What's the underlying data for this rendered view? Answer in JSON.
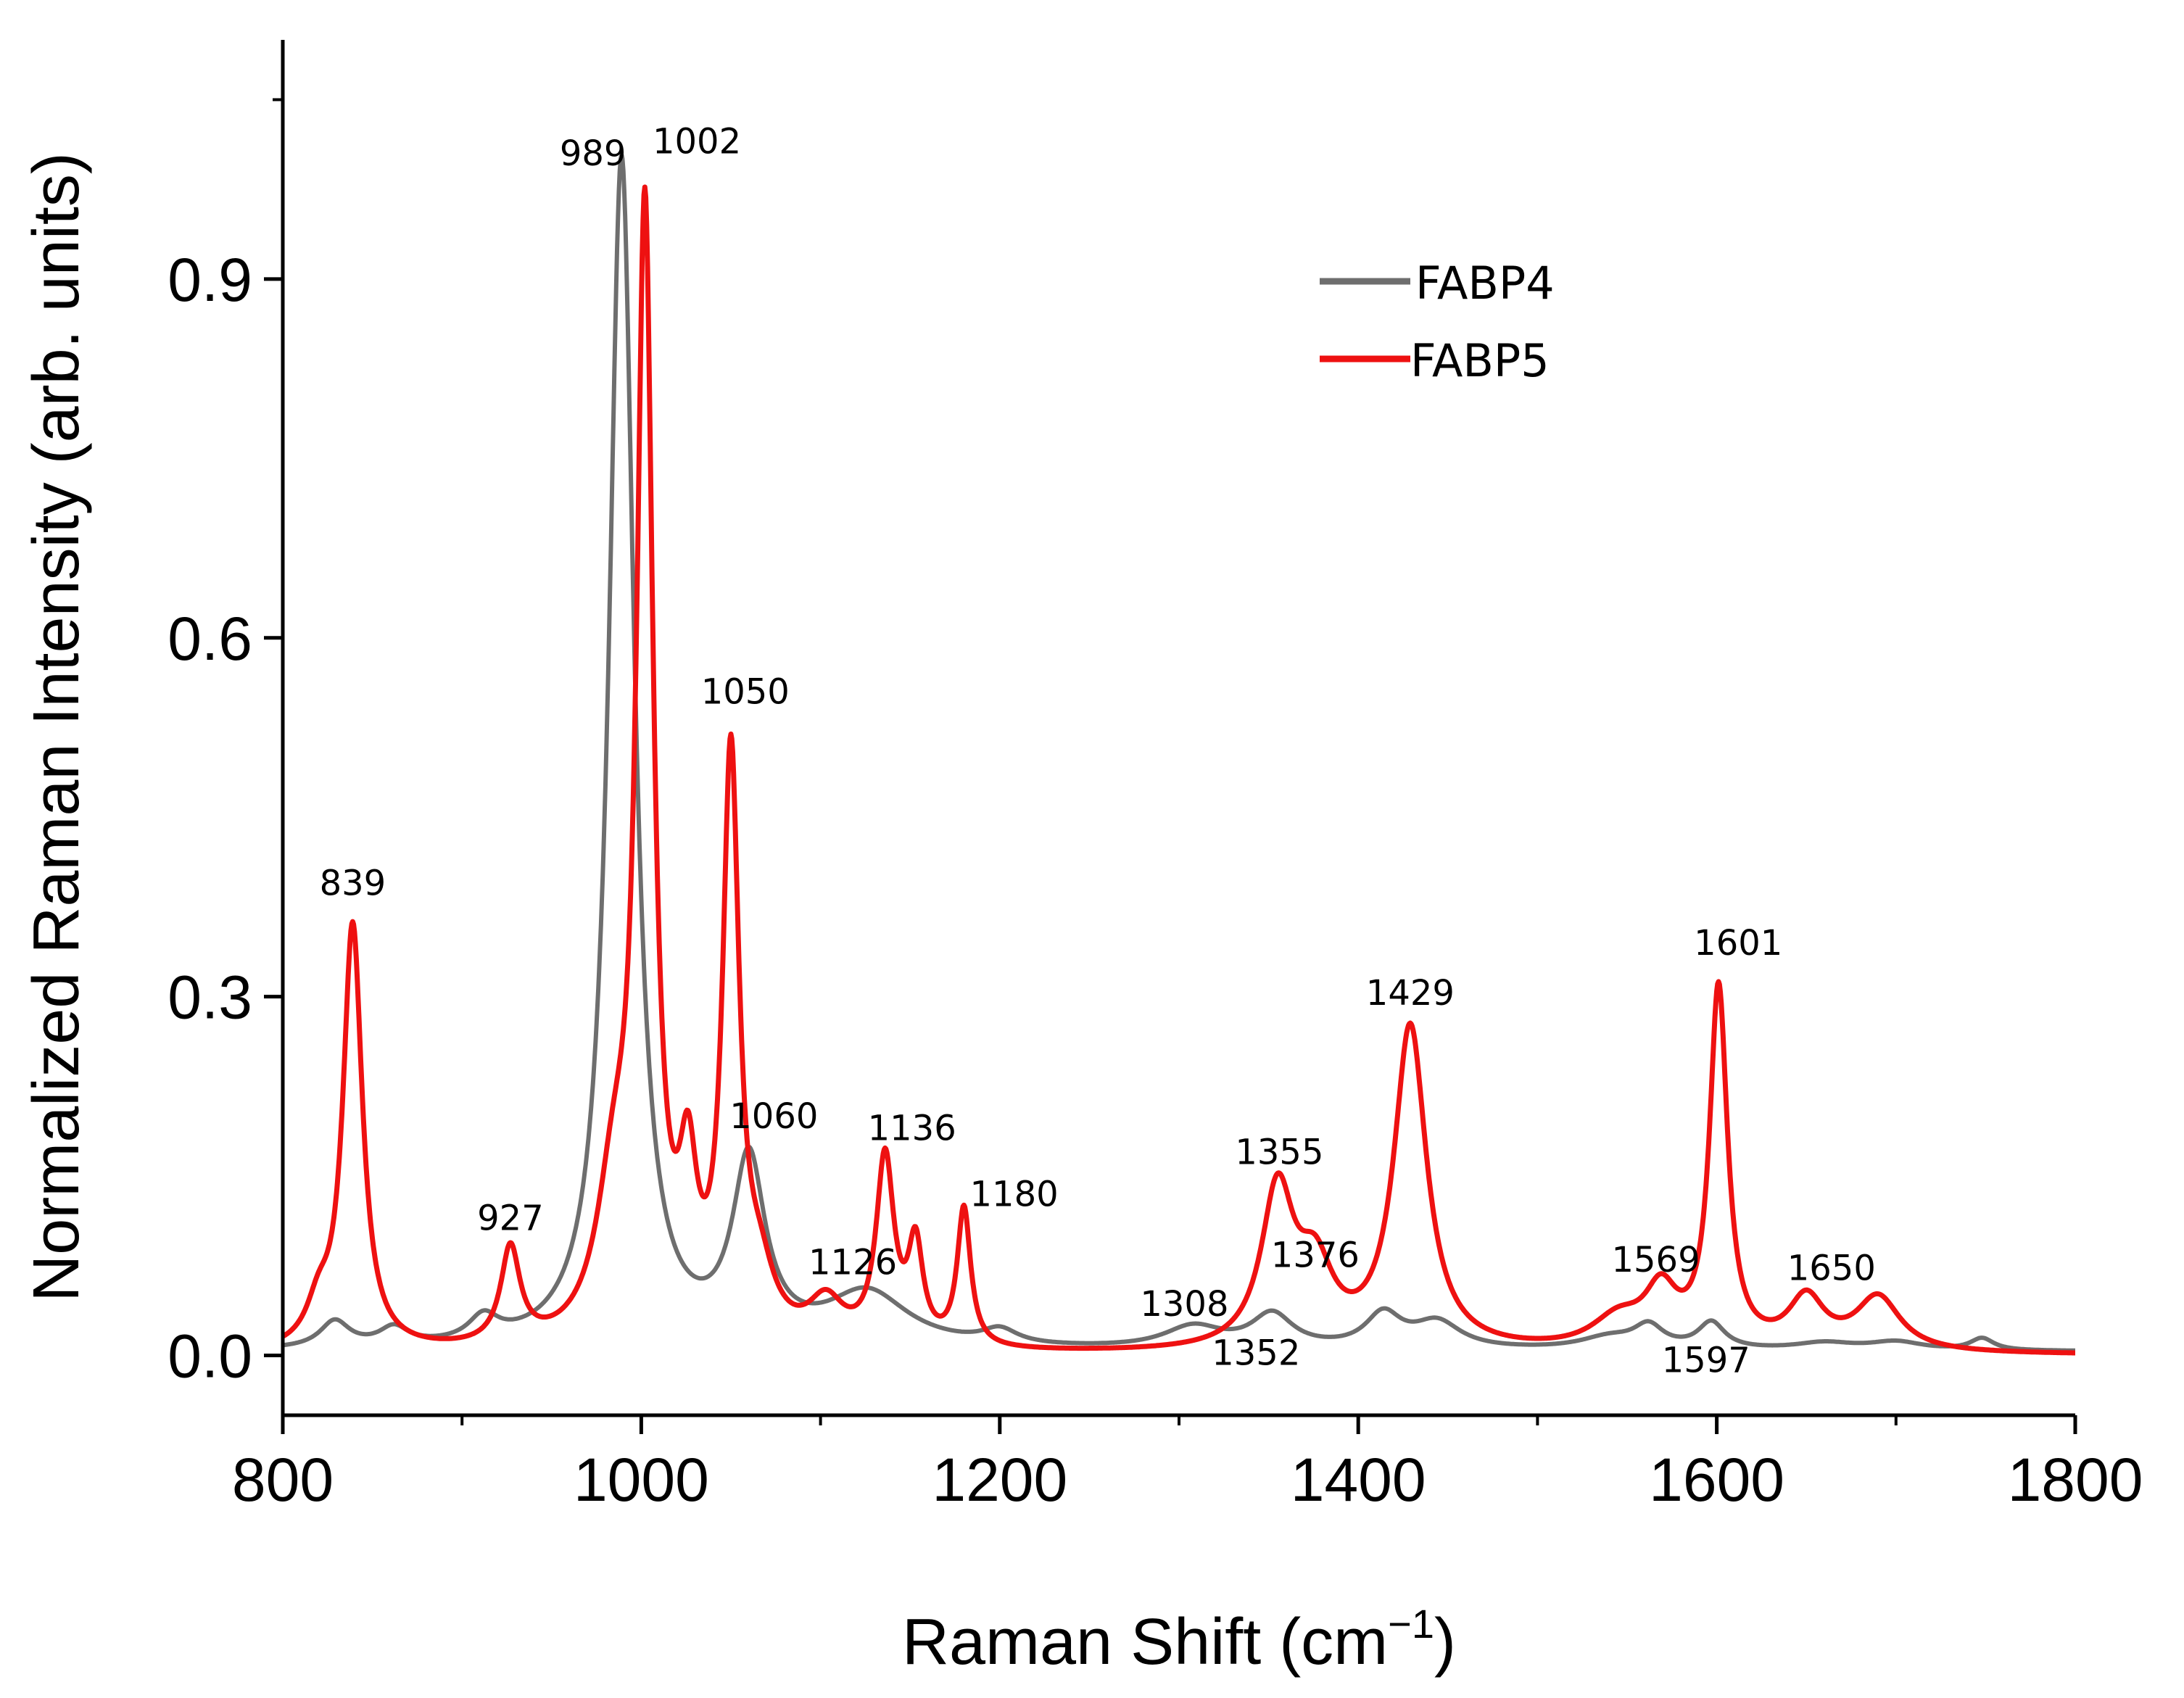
{
  "chart_data": {
    "type": "line",
    "xlabel": "Raman Shift (cm",
    "xlabel_sup": "−1",
    "xlabel_close": ")",
    "ylabel": "Normalized Raman Intensity (arb. units)",
    "xlim": [
      800,
      1800
    ],
    "ylim": [
      -0.05,
      1.1
    ],
    "xticks": [
      800,
      1000,
      1200,
      1400,
      1600,
      1800
    ],
    "xtick_labels": [
      "800",
      "1000",
      "1200",
      "1400",
      "1600",
      "1800"
    ],
    "yticks": [
      0.0,
      0.3,
      0.6,
      0.9
    ],
    "ytick_labels": [
      "0.0",
      "0.3",
      "0.6",
      "0.9"
    ],
    "legend_position": "top-right",
    "series": [
      {
        "name": "FABP4",
        "color": "#6e6e6e",
        "baseline": 0.003,
        "peaks": [
          {
            "x": 829,
            "h": 0.022,
            "w": 10
          },
          {
            "x": 862,
            "h": 0.015,
            "w": 10
          },
          {
            "x": 912,
            "h": 0.02,
            "w": 10
          },
          {
            "x": 989,
            "h": 0.995,
            "w": 8.5
          },
          {
            "x": 1060,
            "h": 0.15,
            "w": 11
          },
          {
            "x": 1126,
            "h": 0.045,
            "w": 28
          },
          {
            "x": 1200,
            "h": 0.012,
            "w": 12
          },
          {
            "x": 1308,
            "h": 0.018,
            "w": 20
          },
          {
            "x": 1352,
            "h": 0.028,
            "w": 14
          },
          {
            "x": 1414,
            "h": 0.028,
            "w": 12
          },
          {
            "x": 1444,
            "h": 0.022,
            "w": 16
          },
          {
            "x": 1540,
            "h": 0.01,
            "w": 20
          },
          {
            "x": 1562,
            "h": 0.018,
            "w": 10
          },
          {
            "x": 1597,
            "h": 0.022,
            "w": 9
          },
          {
            "x": 1660,
            "h": 0.006,
            "w": 20
          },
          {
            "x": 1700,
            "h": 0.007,
            "w": 18
          },
          {
            "x": 1748,
            "h": 0.01,
            "w": 8
          }
        ]
      },
      {
        "name": "FABP5",
        "color": "#ee1111",
        "baseline": 0.0,
        "peaks": [
          {
            "x": 820,
            "h": 0.03,
            "w": 8
          },
          {
            "x": 839,
            "h": 0.355,
            "w": 6.5
          },
          {
            "x": 927,
            "h": 0.08,
            "w": 6.5
          },
          {
            "x": 985,
            "h": 0.12,
            "w": 12
          },
          {
            "x": 1002,
            "h": 0.92,
            "w": 5.5
          },
          {
            "x": 1026,
            "h": 0.12,
            "w": 6
          },
          {
            "x": 1050,
            "h": 0.48,
            "w": 5.5
          },
          {
            "x": 1066,
            "h": 0.045,
            "w": 10
          },
          {
            "x": 1103,
            "h": 0.035,
            "w": 12
          },
          {
            "x": 1136,
            "h": 0.155,
            "w": 6
          },
          {
            "x": 1153,
            "h": 0.08,
            "w": 5
          },
          {
            "x": 1180,
            "h": 0.115,
            "w": 4.5
          },
          {
            "x": 1355,
            "h": 0.13,
            "w": 11
          },
          {
            "x": 1376,
            "h": 0.06,
            "w": 12
          },
          {
            "x": 1429,
            "h": 0.27,
            "w": 11
          },
          {
            "x": 1545,
            "h": 0.025,
            "w": 18
          },
          {
            "x": 1569,
            "h": 0.045,
            "w": 11
          },
          {
            "x": 1601,
            "h": 0.3,
            "w": 6
          },
          {
            "x": 1650,
            "h": 0.042,
            "w": 12
          },
          {
            "x": 1690,
            "h": 0.045,
            "w": 15
          }
        ]
      }
    ],
    "annotations": [
      {
        "text": "839",
        "x": 839,
        "y": 0.385
      },
      {
        "text": "927",
        "x": 927,
        "y": 0.105
      },
      {
        "text": "989",
        "x": 973,
        "y": 0.995
      },
      {
        "text": "1002",
        "x": 1031,
        "y": 1.005
      },
      {
        "text": "1050",
        "x": 1058,
        "y": 0.545
      },
      {
        "text": "1060",
        "x": 1074,
        "y": 0.19
      },
      {
        "text": "1126",
        "x": 1118,
        "y": 0.068
      },
      {
        "text": "1136",
        "x": 1151,
        "y": 0.18
      },
      {
        "text": "1180",
        "x": 1208,
        "y": 0.125
      },
      {
        "text": "1308",
        "x": 1303,
        "y": 0.033
      },
      {
        "text": "1352",
        "x": 1343,
        "y": -0.008
      },
      {
        "text": "1355",
        "x": 1356,
        "y": 0.16
      },
      {
        "text": "1376",
        "x": 1376,
        "y": 0.074
      },
      {
        "text": "1429",
        "x": 1429,
        "y": 0.293
      },
      {
        "text": "1569",
        "x": 1566,
        "y": 0.07
      },
      {
        "text": "1597",
        "x": 1594,
        "y": -0.014
      },
      {
        "text": "1601",
        "x": 1612,
        "y": 0.335
      },
      {
        "text": "1650",
        "x": 1664,
        "y": 0.063
      }
    ]
  }
}
